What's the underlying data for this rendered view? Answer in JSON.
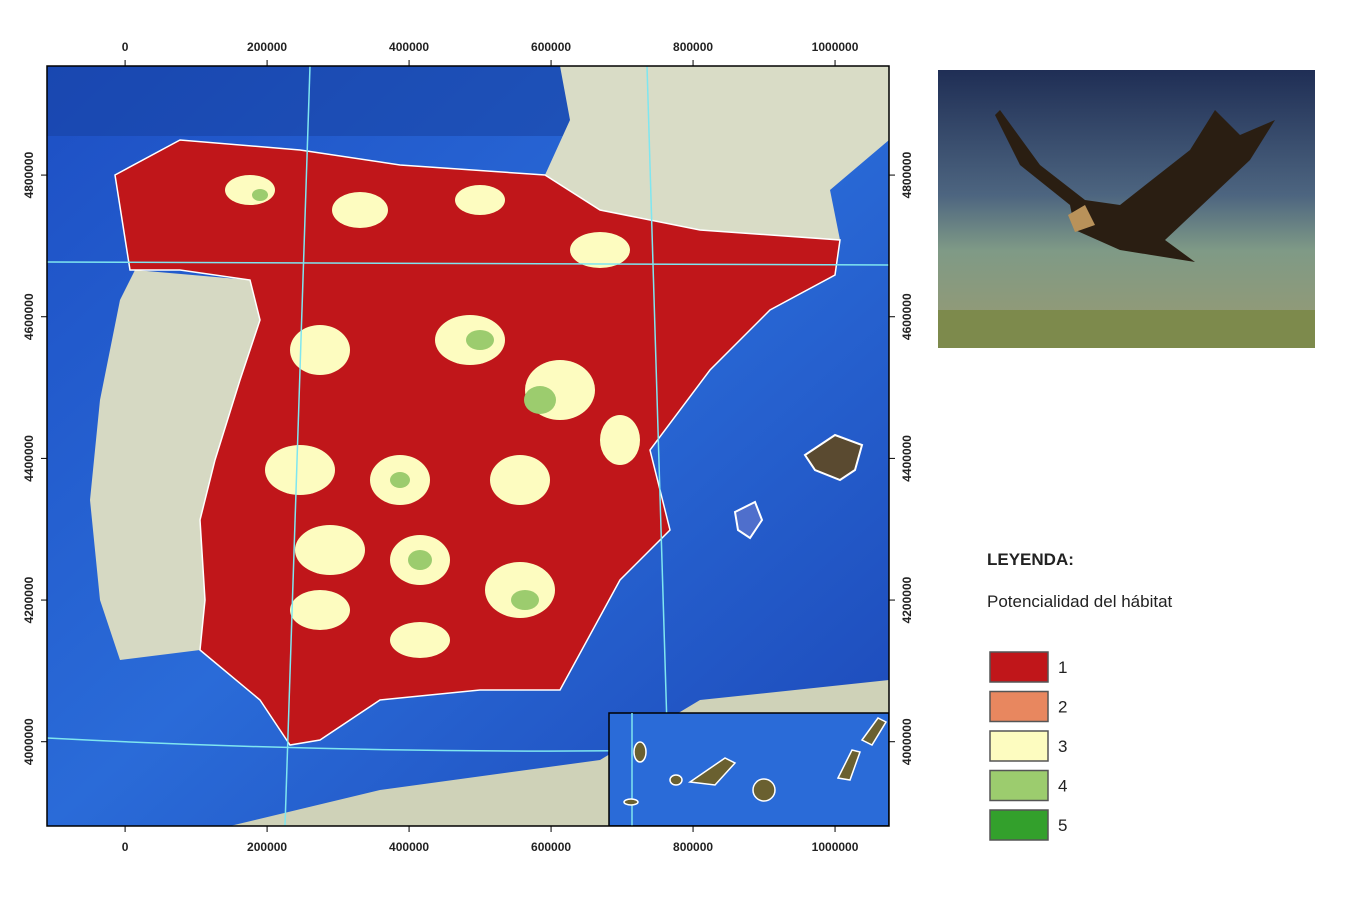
{
  "map": {
    "xlim": [
      -110000,
      1076000
    ],
    "ylim": [
      3881000,
      4954000
    ],
    "xticks": [
      0,
      200000,
      400000,
      600000,
      800000,
      1000000
    ],
    "yticks": [
      4000000,
      4200000,
      4400000,
      4600000,
      4800000
    ]
  },
  "legend": {
    "title": "LEYENDA:",
    "subtitle": "Potencialidad del hábitat",
    "items": [
      {
        "label": "1",
        "color": "#c0161a"
      },
      {
        "label": "2",
        "color": "#e8875f"
      },
      {
        "label": "3",
        "color": "#fdfcc0"
      },
      {
        "label": "4",
        "color": "#9ccc6e"
      },
      {
        "label": "5",
        "color": "#33a02c"
      }
    ]
  }
}
